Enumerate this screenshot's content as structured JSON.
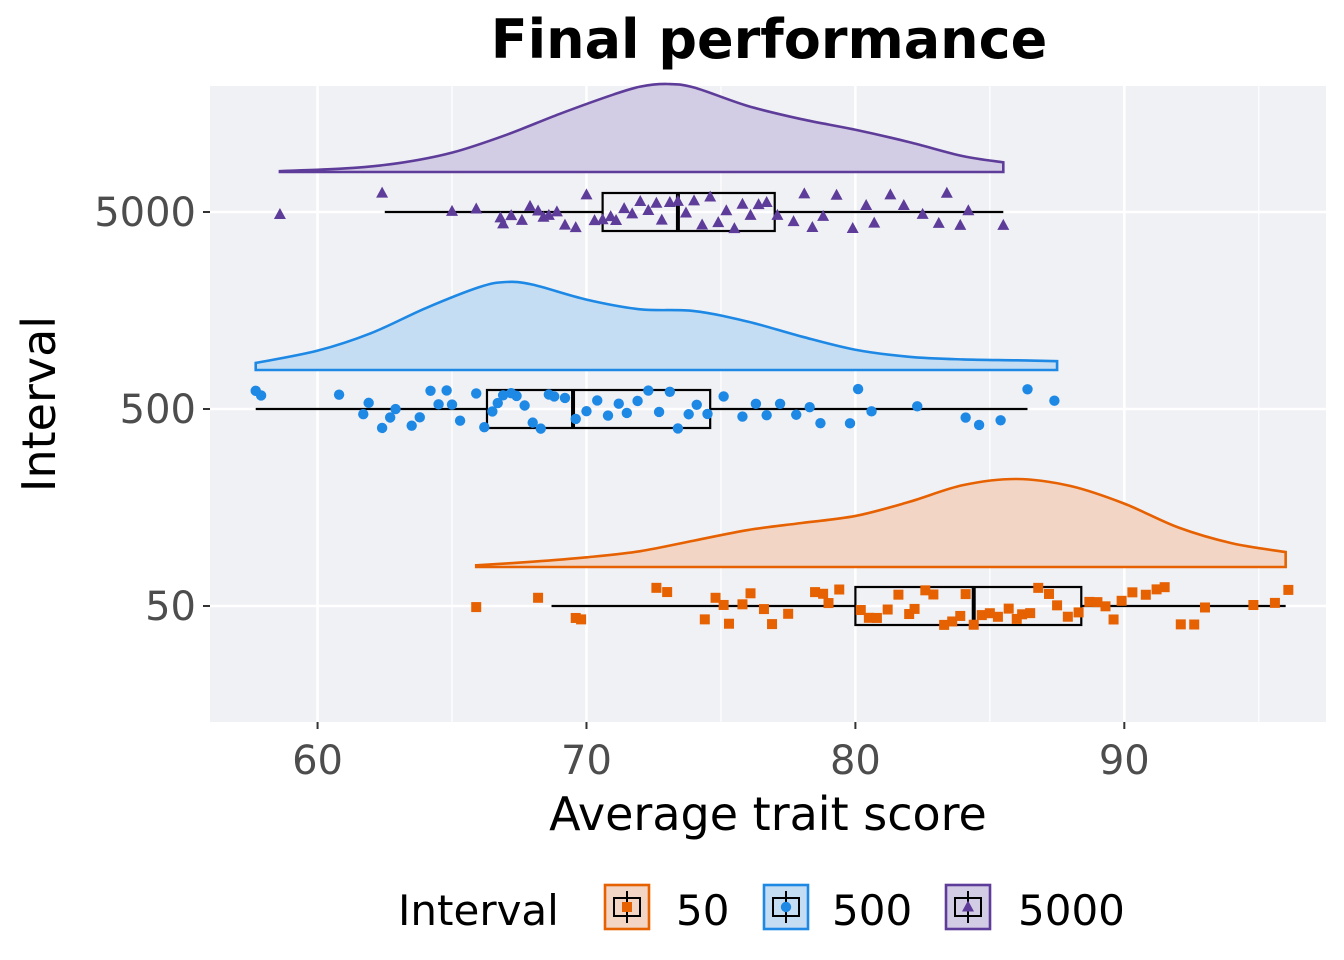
{
  "chart_data": {
    "type": "raincloud",
    "title": "Final performance",
    "xlabel": "Average trait score",
    "ylabel": "Interval",
    "xlim": [
      56,
      97.5
    ],
    "x_ticks": [
      60,
      70,
      80,
      90
    ],
    "categories": [
      "50",
      "500",
      "5000"
    ],
    "grid": true,
    "legend": {
      "title": "Interval",
      "position": "bottom",
      "entries": [
        "50",
        "500",
        "5000"
      ]
    },
    "series": [
      {
        "name": "50",
        "color": "#e66101",
        "fill": "#f2d5c5",
        "marker": "square",
        "box": {
          "whisker_low": 68.7,
          "q1": 80.0,
          "median": 84.4,
          "q3": 88.4,
          "whisker_high": 96.0
        },
        "density": {
          "x": [
            65.9,
            68,
            70,
            72,
            74,
            76,
            78,
            80,
            82,
            84,
            86,
            88,
            90,
            92,
            94,
            96.0
          ],
          "y": [
            0.02,
            0.06,
            0.11,
            0.18,
            0.3,
            0.42,
            0.5,
            0.58,
            0.74,
            0.93,
            1.0,
            0.92,
            0.72,
            0.45,
            0.27,
            0.17
          ]
        },
        "points": [
          65.9,
          68.2,
          69.6,
          69.8,
          72.6,
          73.0,
          74.4,
          74.8,
          75.1,
          75.3,
          75.8,
          76.1,
          76.6,
          76.9,
          77.5,
          78.5,
          78.8,
          79.0,
          79.4,
          80.2,
          80.5,
          80.8,
          81.2,
          81.6,
          82.0,
          82.2,
          82.6,
          82.9,
          83.3,
          83.6,
          83.9,
          84.1,
          84.4,
          84.7,
          85.0,
          85.3,
          85.7,
          86.0,
          86.2,
          86.5,
          86.8,
          87.2,
          87.5,
          87.9,
          88.3,
          88.7,
          89.0,
          89.3,
          89.6,
          89.9,
          90.3,
          90.8,
          91.2,
          91.5,
          92.1,
          92.6,
          93.0,
          94.8,
          95.6,
          96.1
        ]
      },
      {
        "name": "500",
        "color": "#1e88e5",
        "fill": "#c5ddf2",
        "marker": "circle",
        "box": {
          "whisker_low": 57.7,
          "q1": 66.3,
          "median": 69.5,
          "q3": 74.6,
          "whisker_high": 86.4
        },
        "density": {
          "x": [
            57.7,
            60,
            62,
            64,
            66,
            67,
            68,
            70,
            72,
            74,
            76,
            78,
            80,
            82,
            84,
            86,
            87.5
          ],
          "y": [
            0.08,
            0.22,
            0.42,
            0.7,
            0.94,
            1.0,
            0.97,
            0.8,
            0.69,
            0.67,
            0.55,
            0.38,
            0.23,
            0.15,
            0.12,
            0.11,
            0.1
          ]
        },
        "points": [
          57.7,
          57.9,
          60.8,
          61.7,
          61.9,
          62.4,
          62.7,
          62.9,
          63.5,
          63.8,
          64.2,
          64.5,
          64.8,
          65.0,
          65.3,
          65.9,
          66.2,
          66.5,
          66.7,
          66.9,
          67.2,
          67.4,
          67.7,
          68.0,
          68.3,
          68.6,
          68.8,
          69.2,
          69.6,
          70.0,
          70.4,
          70.8,
          71.2,
          71.5,
          71.9,
          72.3,
          72.7,
          73.1,
          73.4,
          73.8,
          74.1,
          74.5,
          75.1,
          75.8,
          76.3,
          76.7,
          77.2,
          77.8,
          78.3,
          78.7,
          79.8,
          80.1,
          80.6,
          82.3,
          84.1,
          84.6,
          85.4,
          86.4,
          87.4
        ]
      },
      {
        "name": "5000",
        "color": "#5e3c99",
        "fill": "#d3cce5",
        "marker": "triangle",
        "box": {
          "whisker_low": 62.5,
          "q1": 70.6,
          "median": 73.4,
          "q3": 77.0,
          "whisker_high": 85.5
        },
        "density": {
          "x": [
            58.6,
            61,
            63,
            65,
            67,
            69,
            71,
            72,
            73,
            74,
            76,
            78,
            80,
            82,
            84,
            85.5
          ],
          "y": [
            0.01,
            0.04,
            0.1,
            0.22,
            0.42,
            0.66,
            0.88,
            0.97,
            1.0,
            0.96,
            0.75,
            0.6,
            0.48,
            0.34,
            0.18,
            0.11
          ]
        },
        "points": [
          58.6,
          62.4,
          65.0,
          65.9,
          66.8,
          66.9,
          67.2,
          67.6,
          67.9,
          68.2,
          68.4,
          68.6,
          68.9,
          69.2,
          69.6,
          70.0,
          70.3,
          70.6,
          70.9,
          71.1,
          71.4,
          71.7,
          72.0,
          72.3,
          72.6,
          72.8,
          73.1,
          73.4,
          73.7,
          74.0,
          74.3,
          74.6,
          74.9,
          75.2,
          75.5,
          75.8,
          76.1,
          76.4,
          76.7,
          77.1,
          77.7,
          78.1,
          78.4,
          78.8,
          79.3,
          79.9,
          80.4,
          80.7,
          81.3,
          81.8,
          82.5,
          83.1,
          83.4,
          83.9,
          84.2,
          85.5
        ]
      }
    ]
  }
}
